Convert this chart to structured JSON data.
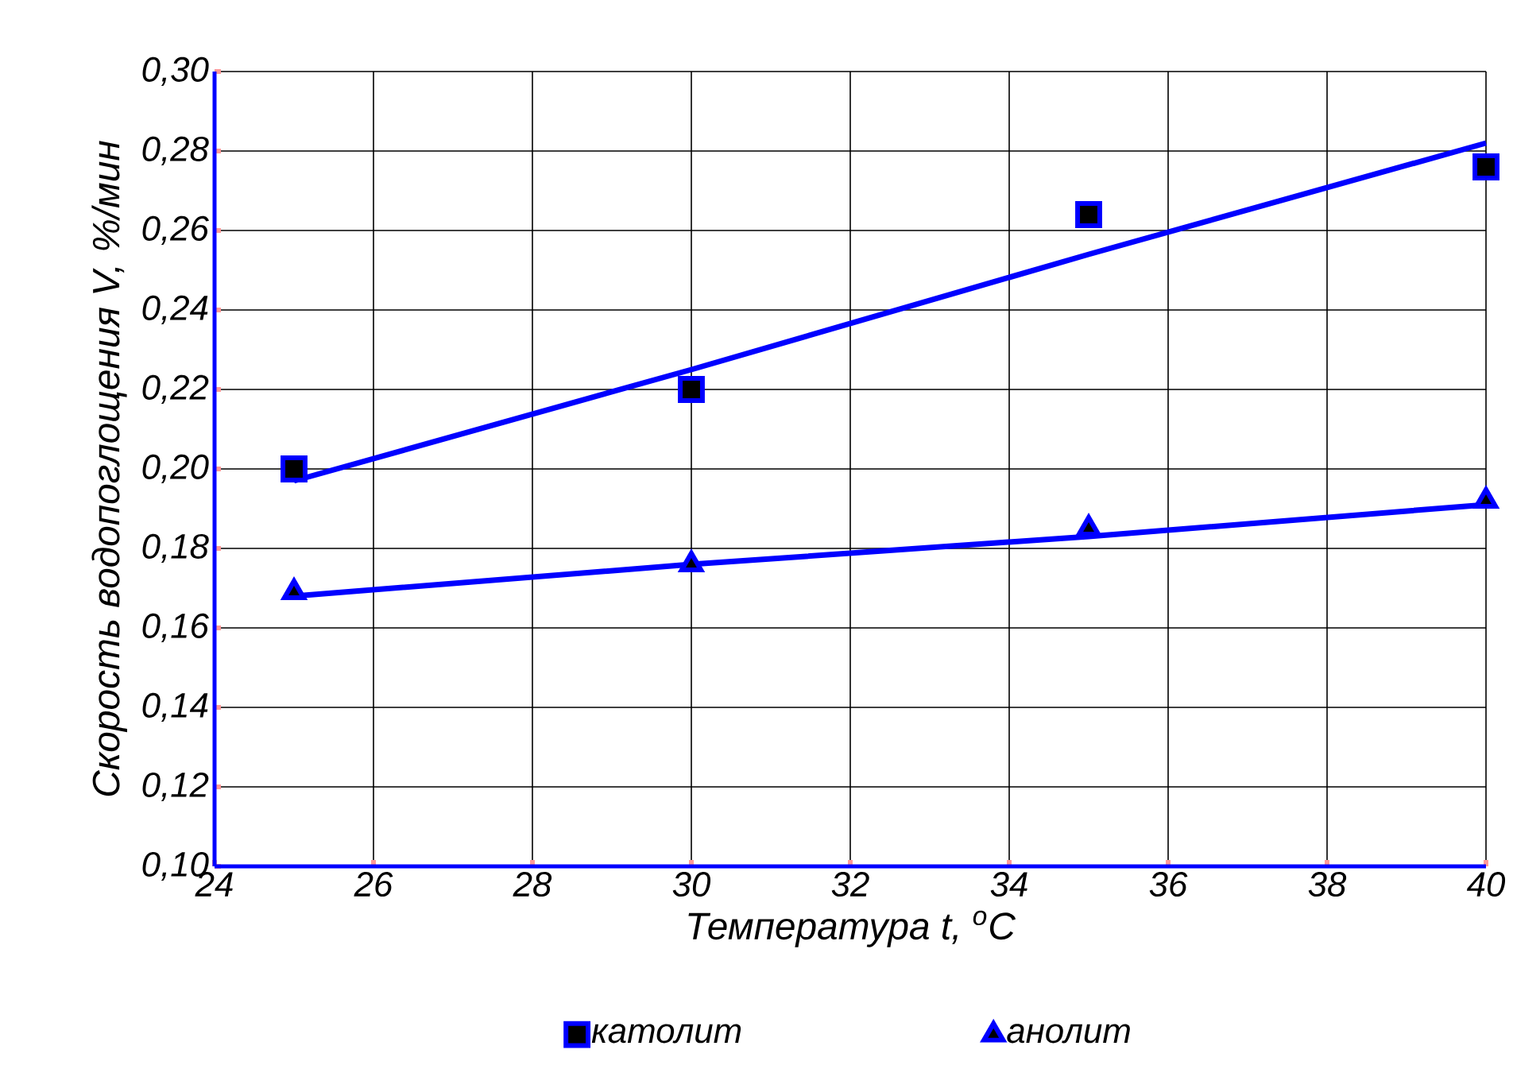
{
  "chart_data": {
    "type": "scatter",
    "xlabel": "Температура t, $^{o}$C",
    "ylabel": "Скорость водопоглощения V, %/мин",
    "x": [
      25,
      30,
      35,
      40
    ],
    "series": [
      {
        "name": "католит",
        "marker": "square",
        "color": "#0000ff",
        "values": [
          0.2,
          0.22,
          0.264,
          0.276
        ]
      },
      {
        "name": "анолит",
        "marker": "triangle",
        "color": "#0000ff",
        "values": [
          0.169,
          0.176,
          0.185,
          0.192
        ]
      },
      {
        "type": "line",
        "marker": "none",
        "color": "#0000ff",
        "values": [
          0.197,
          0.225,
          0.254,
          0.282
        ]
      },
      {
        "type": "line",
        "marker": "none",
        "color": "#0000ff",
        "values": [
          0.168,
          0.176,
          0.183,
          0.191
        ]
      }
    ],
    "xlim": [
      24,
      40
    ],
    "ylim": [
      0.1,
      0.3
    ],
    "xticks": [
      24,
      26,
      28,
      30,
      32,
      34,
      36,
      38,
      40
    ],
    "yticks": [
      {
        "value": 0.1,
        "label": "0,10"
      },
      {
        "value": 0.12,
        "label": "0,12"
      },
      {
        "value": 0.14,
        "label": "0,14"
      },
      {
        "value": 0.16,
        "label": "0,16"
      },
      {
        "value": 0.18,
        "label": "0,18"
      },
      {
        "value": 0.2,
        "label": "0,20"
      },
      {
        "value": 0.22,
        "label": "0,22"
      },
      {
        "value": 0.24,
        "label": "0,24"
      },
      {
        "value": 0.26,
        "label": "0,26"
      },
      {
        "value": 0.28,
        "label": "0,28"
      },
      {
        "value": 0.3,
        "label": "0,30"
      }
    ],
    "grid": true,
    "legend": "bottom",
    "line_style": "solid"
  }
}
